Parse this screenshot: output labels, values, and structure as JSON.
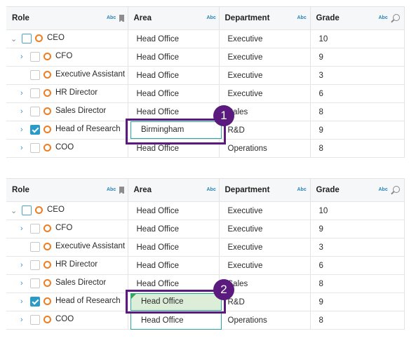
{
  "columns": [
    {
      "label": "Role",
      "filter_icon": "abc-text-filter-icon",
      "extra_icon": "bookmark-icon"
    },
    {
      "label": "Area",
      "filter_icon": "abc-text-filter-icon"
    },
    {
      "label": "Department",
      "filter_icon": "abc-text-filter-icon"
    },
    {
      "label": "Grade",
      "filter_icon": "abc-text-filter-icon",
      "extra_icon": "magnifier-icon"
    }
  ],
  "abc_text": "Abc",
  "panels": [
    {
      "step": "1",
      "rows": [
        {
          "role": "CEO",
          "area": "Head Office",
          "department": "Executive",
          "grade": "10",
          "level": 0,
          "toggle": "collapse",
          "checked": false
        },
        {
          "role": "CFO",
          "area": "Head Office",
          "department": "Executive",
          "grade": "9",
          "level": 1,
          "toggle": "expand",
          "checked": false
        },
        {
          "role": "Executive Assistant",
          "area": "Head Office",
          "department": "Executive",
          "grade": "3",
          "level": 1,
          "toggle": "none",
          "checked": false
        },
        {
          "role": "HR Director",
          "area": "Head Office",
          "department": "Executive",
          "grade": "6",
          "level": 1,
          "toggle": "expand",
          "checked": false
        },
        {
          "role": "Sales Director",
          "area": "Head Office",
          "department": "Sales",
          "grade": "8",
          "level": 1,
          "toggle": "expand",
          "checked": false
        },
        {
          "role": "Head of Research",
          "area": "Birmingham",
          "department": "R&D",
          "grade": "9",
          "level": 1,
          "toggle": "expand",
          "checked": true
        },
        {
          "role": "COO",
          "area": "Head Office",
          "department": "Operations",
          "grade": "8",
          "level": 1,
          "toggle": "expand",
          "checked": false
        }
      ],
      "editing_value": "Birmingham"
    },
    {
      "step": "2",
      "rows": [
        {
          "role": "CEO",
          "area": "Head Office",
          "department": "Executive",
          "grade": "10",
          "level": 0,
          "toggle": "collapse",
          "checked": false
        },
        {
          "role": "CFO",
          "area": "Head Office",
          "department": "Executive",
          "grade": "9",
          "level": 1,
          "toggle": "expand",
          "checked": false
        },
        {
          "role": "Executive Assistant",
          "area": "Head Office",
          "department": "Executive",
          "grade": "3",
          "level": 1,
          "toggle": "none",
          "checked": false
        },
        {
          "role": "HR Director",
          "area": "Head Office",
          "department": "Executive",
          "grade": "6",
          "level": 1,
          "toggle": "expand",
          "checked": false
        },
        {
          "role": "Sales Director",
          "area": "Head Office",
          "department": "Sales",
          "grade": "8",
          "level": 1,
          "toggle": "expand",
          "checked": false
        },
        {
          "role": "Head of Research",
          "area": "Head Office",
          "department": "R&D",
          "grade": "9",
          "level": 1,
          "toggle": "expand",
          "checked": true
        },
        {
          "role": "COO",
          "area": "Head Office",
          "department": "Operations",
          "grade": "8",
          "level": 1,
          "toggle": "expand",
          "checked": false
        }
      ],
      "changed_value": "Head Office",
      "cell_value_below": "Head Office"
    }
  ],
  "colors": {
    "callout": "#5b1a7e",
    "checkbox_checked": "#2a9ac9",
    "node_ring": "#ef7d22",
    "changed_cell": "#dcedd8",
    "edit_border": "#2aa7a3"
  }
}
